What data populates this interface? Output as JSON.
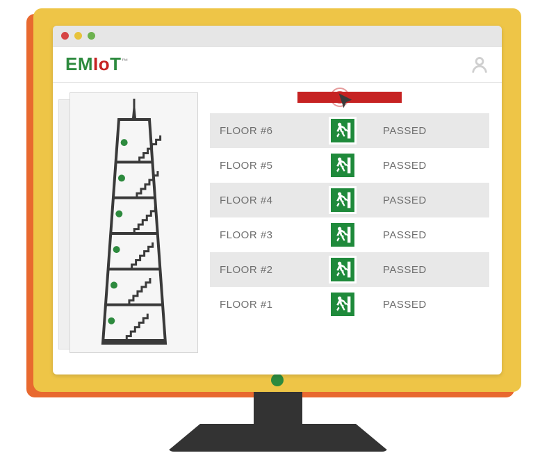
{
  "colors": {
    "bezel": "#eec547",
    "bezel_shadow": "#e8692f",
    "stand": "#333333",
    "titlebar": "#e6e6e6",
    "row_alt": "#e8e8e8",
    "text_muted": "#6e6e6e",
    "green": "#2d8a3e",
    "red": "#c62222",
    "exit_green": "#1f8a3b",
    "dot_red": "#d64545",
    "dot_yellow": "#e7c33b",
    "dot_green": "#6db24f",
    "user_icon": "#cfcfcf"
  },
  "titlebar": {
    "dots": [
      "dot_red",
      "dot_yellow",
      "dot_green"
    ]
  },
  "logo": {
    "part1": "EM",
    "part2": "Io",
    "part3": "T",
    "tm": "™"
  },
  "building": {
    "floor_count": 6,
    "indicator_color": "#2d8a3e"
  },
  "floors": [
    {
      "label": "FLOOR #6",
      "status": "PASSED"
    },
    {
      "label": "FLOOR #5",
      "status": "PASSED"
    },
    {
      "label": "FLOOR #4",
      "status": "PASSED"
    },
    {
      "label": "FLOOR #3",
      "status": "PASSED"
    },
    {
      "label": "FLOOR #2",
      "status": "PASSED"
    },
    {
      "label": "FLOOR #1",
      "status": "PASSED"
    }
  ]
}
